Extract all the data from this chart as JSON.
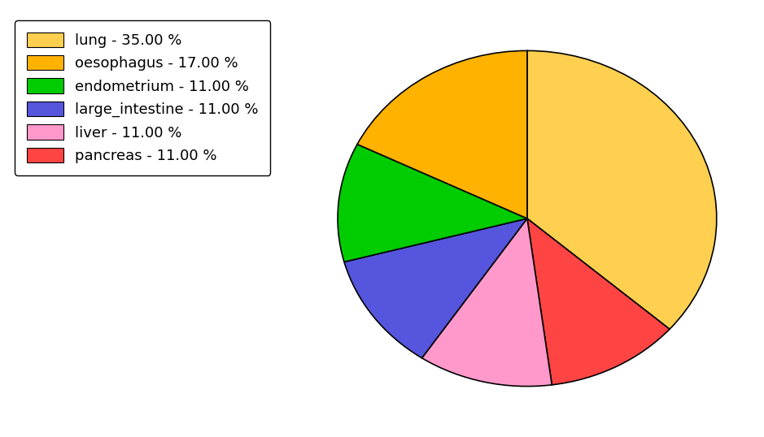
{
  "labels": [
    "lung",
    "pancreas",
    "liver",
    "large_intestine",
    "endometrium",
    "oesophagus"
  ],
  "values": [
    35.0,
    11.0,
    11.0,
    11.0,
    11.0,
    17.0
  ],
  "colors": [
    "#FFD050",
    "#FF4444",
    "#FF99CC",
    "#5555DD",
    "#00CC00",
    "#FFB300"
  ],
  "legend_labels": [
    "lung - 35.00 %",
    "oesophagus - 17.00 %",
    "endometrium - 11.00 %",
    "large_intestine - 11.00 %",
    "liver - 11.00 %",
    "pancreas - 11.00 %"
  ],
  "legend_colors": [
    "#FFD050",
    "#FFB300",
    "#00CC00",
    "#5555DD",
    "#FF99CC",
    "#FF4444"
  ],
  "startangle": 90,
  "counterclock": false,
  "figsize": [
    9.39,
    5.38
  ],
  "dpi": 100
}
